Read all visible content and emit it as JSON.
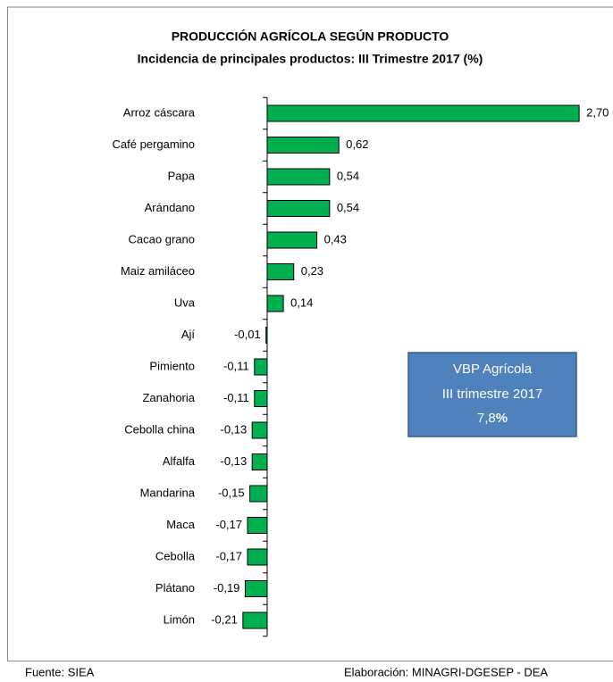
{
  "chart_data": {
    "type": "bar",
    "orientation": "horizontal",
    "title": "PRODUCCIÓN AGRÍCOLA SEGÚN PRODUCTO",
    "subtitle": "Incidencia de principales productos: III Trimestre 2017 (%)",
    "categories": [
      "Arroz cáscara",
      "Café pergamino",
      "Papa",
      "Arándano",
      "Cacao grano",
      "Maiz amiláceo",
      "Uva",
      "Ají",
      "Pimiento",
      "Zanahoria",
      "Cebolla china",
      "Alfalfa",
      "Mandarina",
      "Maca",
      "Cebolla",
      "Plátano",
      "Limón"
    ],
    "values": [
      2.7,
      0.62,
      0.54,
      0.54,
      0.43,
      0.23,
      0.14,
      -0.01,
      -0.11,
      -0.11,
      -0.13,
      -0.13,
      -0.15,
      -0.17,
      -0.17,
      -0.19,
      -0.21
    ],
    "value_labels": [
      "2,70",
      "0,62",
      "0,54",
      "0,54",
      "0,43",
      "0,23",
      "0,14",
      "-0,01",
      "-0,11",
      "-0,11",
      "-0,13",
      "-0,13",
      "-0,15",
      "-0,17",
      "-0,17",
      "-0,19",
      "-0,21"
    ],
    "color": "#00b050",
    "annotation": {
      "lines": [
        "VBP Agrícola",
        "III trimestre 2017"
      ],
      "value": "7,8",
      "unit": "%"
    },
    "source": "Fuente: SIEA",
    "credit": "Elaboración: MINAGRI-DGESEP - DEA"
  }
}
